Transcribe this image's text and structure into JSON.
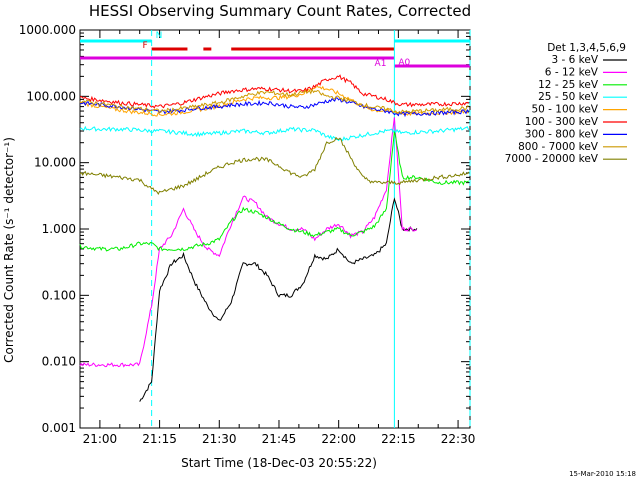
{
  "chart_data": {
    "type": "line",
    "title": "HESSI Observing Summary Count Rates, Corrected",
    "xlabel": "Start Time (18-Dec-03 20:55:22)",
    "ylabel": "Corrected Count Rate (s⁻¹ detector⁻¹)",
    "footer": "15-Mar-2010 15:18",
    "y_scale": "log",
    "ylim": [
      0.001,
      1000
    ],
    "xlim": [
      "20:55",
      "22:33"
    ],
    "x_ticks": [
      "21:00",
      "21:15",
      "21:30",
      "21:45",
      "22:00",
      "22:15",
      "22:30"
    ],
    "y_ticks": [
      "0.001",
      "0.010",
      "0.100",
      "1.000",
      "10.000",
      "100.000",
      "1000.000"
    ],
    "legend_title": "Det 1,3,4,5,6,9",
    "legend_position": "right",
    "x": [
      "20:55",
      "21:00",
      "21:05",
      "21:10",
      "21:13",
      "21:15",
      "21:18",
      "21:21",
      "21:24",
      "21:27",
      "21:30",
      "21:33",
      "21:36",
      "21:39",
      "21:42",
      "21:45",
      "21:48",
      "21:51",
      "21:54",
      "21:57",
      "22:00",
      "22:03",
      "22:06",
      "22:09",
      "22:12",
      "22:14",
      "22:16",
      "22:20",
      "22:25",
      "22:30",
      "22:33"
    ],
    "series": [
      {
        "name": "3 - 6 keV",
        "color": "#000000",
        "values": [
          null,
          null,
          null,
          0.0025,
          0.005,
          0.12,
          0.3,
          0.4,
          0.15,
          0.07,
          0.04,
          0.08,
          0.3,
          0.3,
          0.2,
          0.1,
          0.1,
          0.15,
          0.4,
          0.35,
          0.5,
          0.3,
          0.35,
          0.4,
          0.6,
          3,
          1.0,
          1.0,
          null,
          null,
          null
        ]
      },
      {
        "name": "6 - 12 keV",
        "color": "#ff00ff",
        "values": [
          0.009,
          0.009,
          0.009,
          0.009,
          0.07,
          0.5,
          0.8,
          2,
          0.9,
          0.5,
          0.4,
          1.2,
          3,
          2.5,
          1.5,
          1.2,
          1.0,
          1.0,
          0.7,
          1.0,
          1.2,
          0.8,
          0.9,
          1.5,
          4.0,
          50,
          1.0,
          1.0,
          null,
          null,
          null
        ]
      },
      {
        "name": "12 - 25 keV",
        "color": "#00ee00",
        "values": [
          0.55,
          0.5,
          0.5,
          0.6,
          0.6,
          0.5,
          0.5,
          0.5,
          0.55,
          0.6,
          0.7,
          1.3,
          2,
          1.8,
          1.5,
          1.2,
          1.0,
          0.9,
          0.8,
          0.9,
          1.0,
          0.8,
          0.9,
          1.1,
          2.0,
          30,
          6,
          6,
          5,
          5,
          5
        ]
      },
      {
        "name": "25 - 50 keV",
        "color": "#00ffff",
        "values": [
          33,
          32,
          32,
          31,
          30,
          30,
          29,
          28,
          27,
          27,
          28,
          29,
          30,
          29,
          28,
          30,
          32,
          31,
          31,
          25,
          22,
          24,
          26,
          28,
          30,
          30,
          28,
          29,
          30,
          32,
          33
        ]
      },
      {
        "name": "50 - 100 keV",
        "color": "#ffa500",
        "values": [
          80,
          70,
          62,
          57,
          55,
          53,
          55,
          58,
          62,
          66,
          72,
          80,
          90,
          95,
          95,
          95,
          100,
          110,
          140,
          130,
          110,
          90,
          70,
          62,
          60,
          58,
          55,
          55,
          56,
          58,
          60
        ]
      },
      {
        "name": "100 - 300 keV",
        "color": "#ff0000",
        "values": [
          95,
          88,
          80,
          75,
          72,
          70,
          74,
          80,
          90,
          100,
          110,
          120,
          125,
          130,
          130,
          125,
          120,
          120,
          140,
          180,
          200,
          160,
          110,
          100,
          90,
          80,
          75,
          75,
          76,
          78,
          80
        ]
      },
      {
        "name": "300 - 800 keV",
        "color": "#0000ff",
        "values": [
          80,
          75,
          70,
          64,
          60,
          58,
          60,
          62,
          66,
          68,
          70,
          74,
          76,
          78,
          80,
          75,
          70,
          68,
          75,
          85,
          90,
          80,
          70,
          64,
          60,
          56,
          54,
          55,
          56,
          58,
          60
        ]
      },
      {
        "name": "800 - 7000 keV",
        "color": "#cc9900",
        "values": [
          85,
          78,
          70,
          65,
          62,
          60,
          62,
          66,
          70,
          75,
          80,
          90,
          100,
          110,
          115,
          110,
          105,
          115,
          120,
          100,
          95,
          85,
          75,
          68,
          65,
          60,
          58,
          60,
          62,
          65,
          68
        ]
      },
      {
        "name": "7000 - 20000 keV",
        "color": "#808000",
        "values": [
          7,
          6.5,
          6,
          5.5,
          4,
          3.5,
          4,
          4.5,
          5.5,
          7,
          8.5,
          10,
          11,
          11.5,
          11,
          9,
          7,
          6,
          8,
          20,
          24,
          12,
          6,
          5,
          5,
          5,
          5,
          5.5,
          6,
          6.5,
          7
        ]
      }
    ],
    "bars": [
      {
        "label": "N",
        "color": "#00ffff",
        "segments": [
          [
            "20:55",
            "21:13"
          ],
          [
            "22:14",
            "22:33"
          ]
        ]
      },
      {
        "label": "F",
        "color": "#dd0000",
        "segments": [
          [
            "21:13",
            "21:22"
          ],
          [
            "21:26",
            "21:28"
          ],
          [
            "21:33",
            "22:14"
          ]
        ]
      },
      {
        "label": "A1",
        "color": "#dd00dd",
        "segments": [
          [
            "20:55",
            "22:14"
          ]
        ]
      },
      {
        "label": "A0",
        "color": "#dd00dd",
        "segments": [
          [
            "22:14",
            "22:33"
          ]
        ]
      }
    ],
    "vlines": [
      {
        "x": "21:13",
        "color": "#00ffff",
        "style": "dashed"
      },
      {
        "x": "22:14",
        "color": "#00ffff",
        "style": "solid"
      },
      {
        "x": "22:33",
        "color": "#00ffff",
        "style": "dashed"
      }
    ],
    "grid": false
  }
}
